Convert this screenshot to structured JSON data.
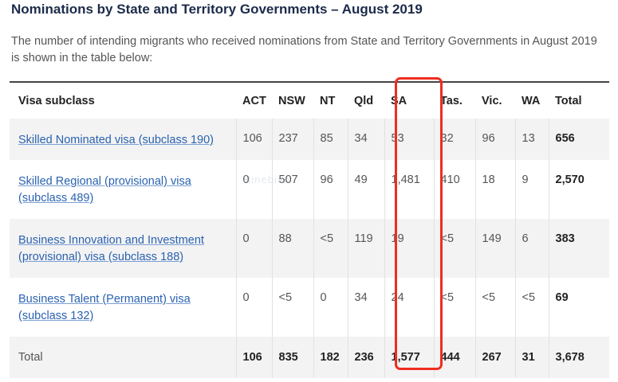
{
  "title": "Nominations by State and Territory Governments – August 2019",
  "intro": "The number of intending migrants who received nominations from State and Territory Governments in August 2019 is shown in the table below:",
  "table": {
    "headers": [
      "Visa subclass",
      "ACT",
      "NSW",
      "NT",
      "Qld",
      "SA",
      "Tas.",
      "Vic.",
      "WA",
      "Total"
    ],
    "rows": [
      {
        "visa_line1": "Skilled Nominated visa (subclass 190)",
        "visa_line2": "",
        "values": [
          "106",
          "237",
          "85",
          "34",
          "53",
          "32",
          "96",
          "13",
          "656"
        ]
      },
      {
        "visa_line1": "Skilled Regional (provisional) visa",
        "visa_line2": "(subclass 489)",
        "values": [
          "0",
          "507",
          "96",
          "49",
          "1,481",
          "410",
          "18",
          "9",
          "2,570"
        ]
      },
      {
        "visa_line1": "Business Innovation and Investment",
        "visa_line2": "(provisional) visa (subclass 188)",
        "values": [
          "0",
          "88",
          "<5",
          "119",
          "19",
          "<5",
          "149",
          "6",
          "383"
        ]
      },
      {
        "visa_line1": "Business Talent (Permanent) visa",
        "visa_line2": "(subclass 132)",
        "values": [
          "0",
          "<5",
          "0",
          "34",
          "24",
          "<5",
          "<5",
          "<5",
          "69"
        ]
      }
    ],
    "total_row": {
      "label": "Total",
      "values": [
        "106",
        "835",
        "182",
        "236",
        "1,577",
        "444",
        "267",
        "31",
        "3,678"
      ]
    }
  },
  "annotation": {
    "highlight_color": "#ef2d1e",
    "highlighted_column": "SA"
  },
  "watermark": "Hinebian"
}
